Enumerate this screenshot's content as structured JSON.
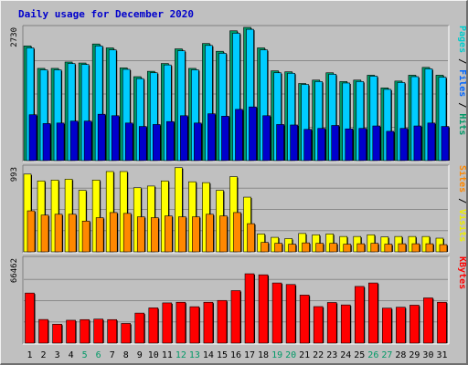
{
  "chart_data": {
    "type": "bar",
    "title": "Daily usage for December 2020",
    "categories": [
      "1",
      "2",
      "3",
      "4",
      "5",
      "6",
      "7",
      "8",
      "9",
      "10",
      "11",
      "12",
      "13",
      "14",
      "15",
      "16",
      "17",
      "18",
      "19",
      "20",
      "21",
      "22",
      "23",
      "24",
      "25",
      "26",
      "27",
      "28",
      "29",
      "30",
      "31"
    ],
    "weekend_days": [
      "5",
      "6",
      "12",
      "13",
      "19",
      "20",
      "26",
      "27"
    ],
    "panels": [
      {
        "name": "traffic",
        "ymax": 2730,
        "ymax_label": "2730",
        "right_label": [
          {
            "text": "Pages",
            "color": "#00cccc"
          },
          {
            "text": " / ",
            "color": "#000000"
          },
          {
            "text": "Files",
            "color": "#0066ff"
          },
          {
            "text": " / ",
            "color": "#000000"
          },
          {
            "text": "Hits",
            "color": "#009966"
          }
        ],
        "series": [
          {
            "name": "Hits",
            "color": "#009966",
            "values": [
              2350,
              1890,
              1890,
              2020,
              2000,
              2390,
              2310,
              1900,
              1720,
              1830,
              1990,
              2290,
              1890,
              2400,
              2240,
              2660,
              2730,
              2310,
              1840,
              1820,
              1580,
              1650,
              1800,
              1620,
              1650,
              1750,
              1490,
              1630,
              1750,
              1910,
              1750
            ]
          },
          {
            "name": "Files",
            "color": "#00ccff",
            "values": [
              2310,
              1860,
              1860,
              1990,
              1970,
              2350,
              2270,
              1870,
              1680,
              1800,
              1960,
              2250,
              1860,
              2360,
              2200,
              2610,
              2690,
              2270,
              1800,
              1790,
              1560,
              1620,
              1770,
              1590,
              1620,
              1730,
              1460,
              1600,
              1720,
              1880,
              1710
            ]
          },
          {
            "name": "Pages",
            "color": "#0000cc",
            "values": [
              940,
              760,
              770,
              810,
              810,
              950,
              920,
              770,
              700,
              740,
              800,
              920,
              770,
              960,
              910,
              1050,
              1100,
              920,
              740,
              730,
              640,
              660,
              720,
              650,
              660,
              710,
              600,
              660,
              710,
              770,
              700
            ]
          }
        ]
      },
      {
        "name": "visitors",
        "ymax": 993,
        "ymax_label": "993",
        "right_label": [
          {
            "text": "Sites",
            "color": "#ff8800"
          },
          {
            "text": " / ",
            "color": "#000000"
          },
          {
            "text": "Visits",
            "color": "#eeee00"
          }
        ],
        "series": [
          {
            "name": "Visits",
            "color": "#ffff00",
            "values": [
              910,
              830,
              840,
              850,
              720,
              840,
              940,
              940,
              750,
              770,
              830,
              985,
              820,
              810,
              720,
              880,
              640,
              210,
              170,
              155,
              215,
              200,
              210,
              180,
              180,
              200,
              175,
              180,
              180,
              180,
              160
            ]
          },
          {
            "name": "Sites",
            "color": "#ff8800",
            "values": [
              480,
              430,
              440,
              440,
              360,
              400,
              460,
              450,
              410,
              400,
              420,
              410,
              410,
              440,
              420,
              460,
              330,
              110,
              100,
              90,
              105,
              100,
              100,
              90,
              95,
              100,
              90,
              95,
              95,
              95,
              85
            ]
          }
        ]
      },
      {
        "name": "kbytes",
        "ymax": 66462,
        "ymax_label": "66462",
        "right_label": [
          {
            "text": "KBytes",
            "color": "#ff0000"
          }
        ],
        "series": [
          {
            "name": "KBytes",
            "color": "#ff0000",
            "values": [
              39200,
              18500,
              14800,
              17900,
              18400,
              18800,
              18400,
              15400,
              23500,
              27600,
              31500,
              32000,
              28500,
              32000,
              33400,
              41100,
              54300,
              53500,
              47100,
              45900,
              37600,
              28600,
              31800,
              29900,
              44400,
              47100,
              27400,
              28100,
              29700,
              35400,
              32000
            ]
          }
        ]
      }
    ]
  }
}
